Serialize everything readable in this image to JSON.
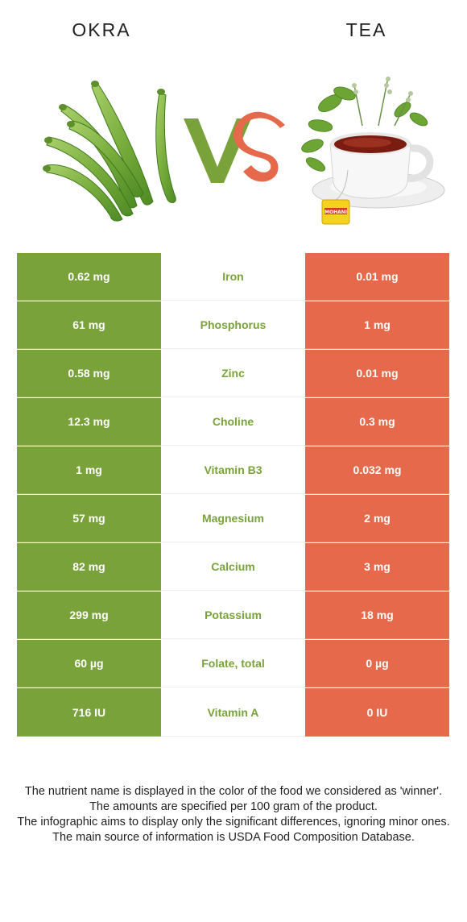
{
  "header": {
    "left_title": "OKRA",
    "right_title": "TEA"
  },
  "vs": {
    "v_color": "#7aa23a",
    "s_color": "#e5694a"
  },
  "images": {
    "left": "okra-pods-image",
    "right": "tea-cup-image",
    "tea_tag_text": "MOHANI"
  },
  "colors": {
    "winner_left": "#7aa23a",
    "loser_right": "#e5694a"
  },
  "rows": [
    {
      "left": "0.62 mg",
      "nutrient": "Iron",
      "right": "0.01 mg"
    },
    {
      "left": "61 mg",
      "nutrient": "Phosphorus",
      "right": "1 mg"
    },
    {
      "left": "0.58 mg",
      "nutrient": "Zinc",
      "right": "0.01 mg"
    },
    {
      "left": "12.3 mg",
      "nutrient": "Choline",
      "right": "0.3 mg"
    },
    {
      "left": "1 mg",
      "nutrient": "Vitamin B3",
      "right": "0.032 mg"
    },
    {
      "left": "57 mg",
      "nutrient": "Magnesium",
      "right": "2 mg"
    },
    {
      "left": "82 mg",
      "nutrient": "Calcium",
      "right": "3 mg"
    },
    {
      "left": "299 mg",
      "nutrient": "Potassium",
      "right": "18 mg"
    },
    {
      "left": "60 µg",
      "nutrient": "Folate, total",
      "right": "0 µg"
    },
    {
      "left": "716 IU",
      "nutrient": "Vitamin A",
      "right": "0 IU"
    }
  ],
  "footnotes": [
    "The nutrient name is displayed in the color of the food we considered as 'winner'.",
    "The amounts are specified per 100 gram of the product.",
    "The infographic aims to display only the significant differences, ignoring minor ones.",
    "The main source of information is USDA Food Composition Database."
  ]
}
